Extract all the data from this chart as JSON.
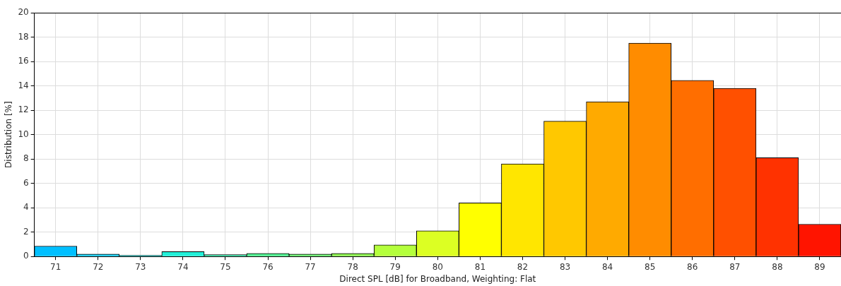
{
  "chart_data": {
    "type": "bar",
    "xlabel": "Direct SPL [dB] for Broadband, Weighting: Flat",
    "ylabel": "Distribution [%]",
    "categories": [
      "71",
      "72",
      "73",
      "74",
      "75",
      "76",
      "77",
      "78",
      "79",
      "80",
      "81",
      "82",
      "83",
      "84",
      "85",
      "86",
      "87",
      "88",
      "89"
    ],
    "values": [
      0.85,
      0.2,
      0.1,
      0.4,
      0.15,
      0.25,
      0.2,
      0.25,
      0.95,
      2.1,
      4.4,
      7.6,
      11.1,
      12.7,
      17.5,
      14.45,
      13.8,
      8.1,
      2.65
    ],
    "colors": [
      "#00bfff",
      "#14cdf0",
      "#23dcd8",
      "#22f0d8",
      "#3af0b0",
      "#50f090",
      "#6af070",
      "#8cf050",
      "#b4ff3c",
      "#dcff23",
      "#ffff00",
      "#ffe600",
      "#ffc800",
      "#ffaa00",
      "#ff8c00",
      "#ff6e00",
      "#ff5000",
      "#ff3200",
      "#ff1400"
    ],
    "ylim": [
      0,
      20
    ],
    "yticks": [
      0,
      2,
      4,
      6,
      8,
      10,
      12,
      14,
      16,
      18,
      20
    ],
    "grid": true,
    "legend": false
  }
}
